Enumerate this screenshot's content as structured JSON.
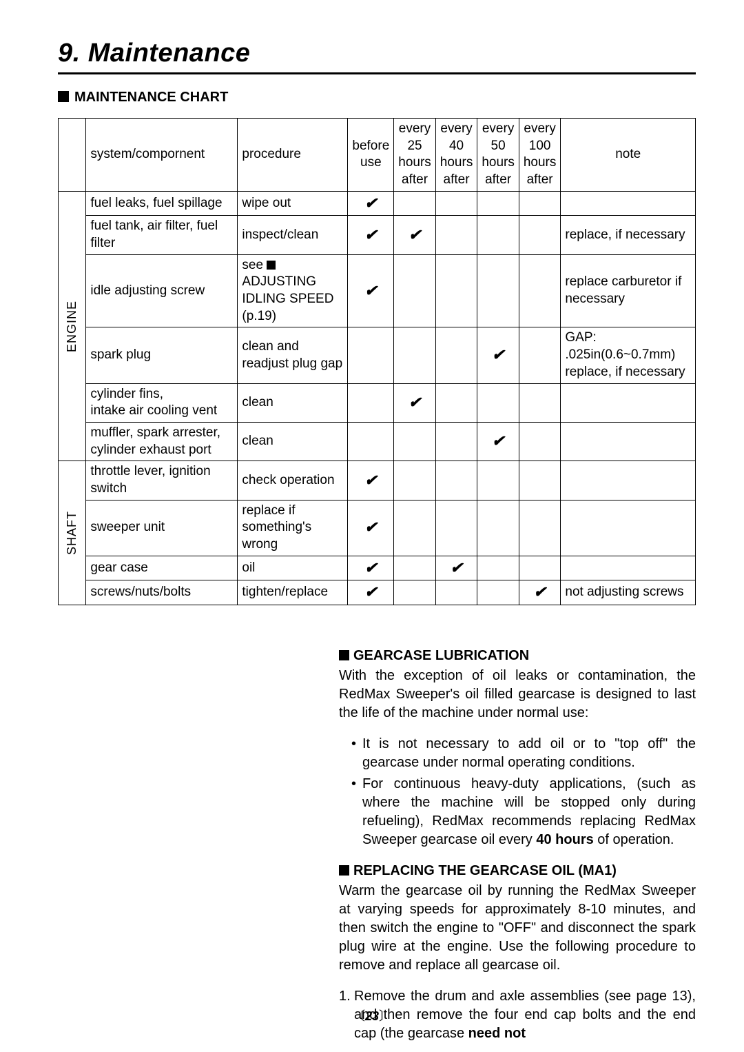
{
  "chapter_title": "9. Maintenance",
  "section1_title": "MAINTENANCE CHART",
  "table": {
    "header": {
      "group": "",
      "system": "system/compornent",
      "procedure": "procedure",
      "before": "before use",
      "h25": "every 25 hours after",
      "h40": "every 40 hours after",
      "h50": "every 50 hours after",
      "h100": "every 100 hours after",
      "note": "note"
    },
    "groups": [
      {
        "label": "ENGINE",
        "rowspan": 6
      },
      {
        "label": "SHAFT",
        "rowspan": 4
      }
    ],
    "rows": [
      {
        "system": "fuel leaks, fuel spillage",
        "procedure": "wipe out",
        "before": "✔",
        "h25": "",
        "h40": "",
        "h50": "",
        "h100": "",
        "note": ""
      },
      {
        "system": "fuel tank, air filter, fuel filter",
        "procedure": "inspect/clean",
        "before": "✔",
        "h25": "✔",
        "h40": "",
        "h50": "",
        "h100": "",
        "note": "replace, if necessary"
      },
      {
        "system": "idle adjusting screw",
        "procedure_html": "see <span class=\"inline-sq\"></span>ADJUSTING IDLING SPEED (p.19)",
        "before": "✔",
        "h25": "",
        "h40": "",
        "h50": "",
        "h100": "",
        "note": "replace carburetor if necessary"
      },
      {
        "system": "spark plug",
        "procedure": "clean and readjust plug gap",
        "before": "",
        "h25": "",
        "h40": "",
        "h50": "✔",
        "h100": "",
        "note": "GAP: .025in(0.6~0.7mm) replace, if necessary"
      },
      {
        "system": "cylinder fins,\nintake air cooling vent",
        "procedure": "clean",
        "before": "",
        "h25": "✔",
        "h40": "",
        "h50": "",
        "h100": "",
        "note": ""
      },
      {
        "system": "muffler, spark arrester, cylinder exhaust port",
        "procedure": "clean",
        "before": "",
        "h25": "",
        "h40": "",
        "h50": "✔",
        "h100": "",
        "note": ""
      },
      {
        "system": "throttle lever, ignition switch",
        "procedure": "check operation",
        "before": "✔",
        "h25": "",
        "h40": "",
        "h50": "",
        "h100": "",
        "note": ""
      },
      {
        "system": "sweeper unit",
        "procedure": "replace if something's wrong",
        "before": "✔",
        "h25": "",
        "h40": "",
        "h50": "",
        "h100": "",
        "note": ""
      },
      {
        "system": "gear case",
        "procedure": "oil",
        "before": "✔",
        "h25": "",
        "h40": "✔",
        "h50": "",
        "h100": "",
        "note": ""
      },
      {
        "system": "screws/nuts/bolts",
        "procedure": "tighten/replace",
        "before": "✔",
        "h25": "",
        "h40": "",
        "h50": "",
        "h100": "✔",
        "note": "not adjusting screws"
      }
    ]
  },
  "gearcase": {
    "title": "GEARCASE LUBRICATION",
    "para": "With the exception of oil leaks or contamination, the RedMax Sweeper's oil filled gearcase is designed to last the life of the machine under normal use:",
    "bullets": [
      "It is not necessary to add oil or to \"top off\" the gearcase under normal operating conditions.",
      "For continuous heavy-duty applications, (such as where the machine will be stopped only during refueling), RedMax recommends replacing RedMax Sweeper gearcase oil every <span class=\"bold\">40 hours</span> of operation."
    ]
  },
  "replacing": {
    "title": "REPLACING THE GEARCASE OIL (MA1)",
    "para": "Warm the gearcase oil by running the RedMax Sweeper at varying speeds for approximately 8-10 minutes, and then switch the engine to \"OFF\" and disconnect the spark plug wire at the engine. Use the following procedure to remove and replace all gearcase oil.",
    "step1": "Remove the drum and axle assemblies (see page 13), and then remove the four end cap bolts and the end cap (the gearcase <span class=\"bold\">need not</span>"
  },
  "page_number": "23"
}
